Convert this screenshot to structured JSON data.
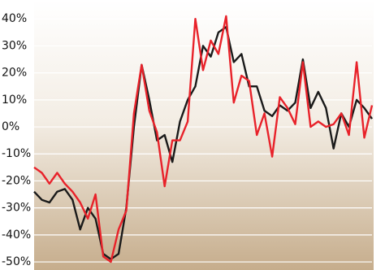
{
  "chart_data": {
    "type": "line",
    "x": [
      0,
      1,
      2,
      3,
      4,
      5,
      6,
      7,
      8,
      9,
      10,
      11,
      12,
      13,
      14,
      15,
      16,
      17,
      18,
      19,
      20,
      21,
      22,
      23,
      24,
      25,
      26,
      27,
      28,
      29,
      30,
      31,
      32,
      33,
      34,
      35,
      36,
      37,
      38,
      39,
      40,
      41,
      42,
      43,
      44
    ],
    "xlim": [
      0,
      44
    ],
    "ylim": [
      -53,
      47
    ],
    "yticks": [
      {
        "value": 40,
        "label": "40%"
      },
      {
        "value": 30,
        "label": "30%"
      },
      {
        "value": 20,
        "label": "20%"
      },
      {
        "value": 10,
        "label": "10%"
      },
      {
        "value": 0,
        "label": "0%"
      },
      {
        "value": -10,
        "label": "-10%"
      },
      {
        "value": -20,
        "label": "-20%"
      },
      {
        "value": -30,
        "label": "-30%"
      },
      {
        "value": -40,
        "label": "-40%"
      },
      {
        "value": -50,
        "label": "-50%"
      }
    ],
    "grid": true,
    "series": [
      {
        "color": "#1a1a1a",
        "values": [
          -24,
          -27,
          -28,
          -24,
          -23,
          -27,
          -38,
          -30,
          -34,
          -47,
          -49,
          -47,
          -30,
          0,
          23,
          10,
          -5,
          -3,
          -13,
          2,
          10,
          15,
          30,
          26,
          35,
          37,
          24,
          27,
          15,
          15,
          6,
          4,
          8,
          6,
          9,
          25,
          7,
          13,
          7,
          -8,
          5,
          0,
          10,
          7,
          3
        ]
      },
      {
        "color": "#e8222a",
        "values": [
          -15,
          -17,
          -21,
          -17,
          -21,
          -24,
          -28,
          -34,
          -25,
          -48,
          -50,
          -38,
          -31,
          5,
          23,
          6,
          -2,
          -22,
          -5,
          -5,
          2,
          40,
          21,
          32,
          27,
          41,
          9,
          19,
          17,
          -3,
          5,
          -11,
          11,
          7,
          1,
          24,
          0,
          2,
          0,
          1,
          5,
          -3,
          24,
          -4,
          8
        ]
      }
    ]
  }
}
